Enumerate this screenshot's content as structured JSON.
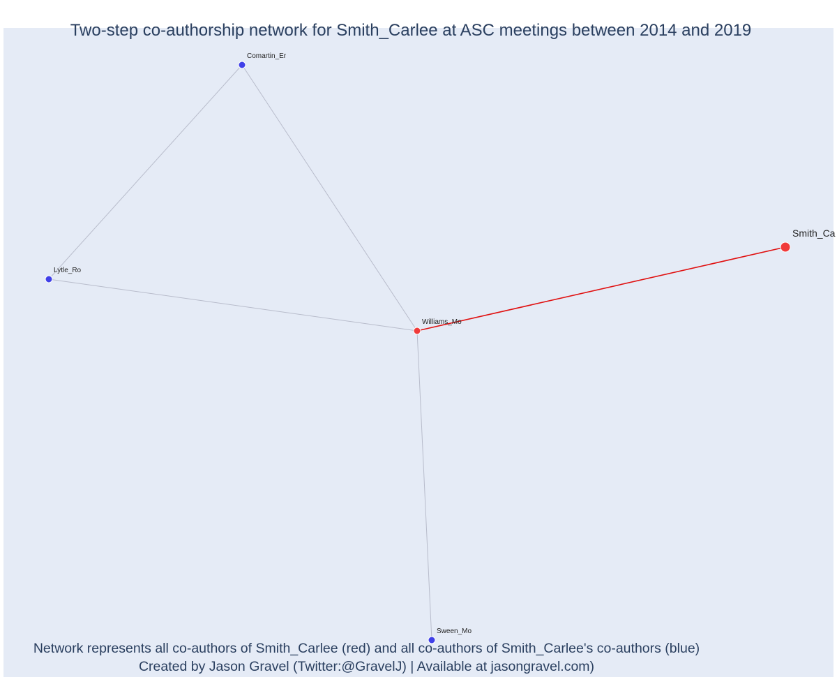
{
  "title": "Two-step co-authorship network for Smith_Carlee at ASC meetings between 2014 and 2019",
  "caption": {
    "line1": "Network represents all co-authors of Smith_Carlee (red) and all co-authors of Smith_Carlee's co-authors (blue)",
    "line2": "Created by Jason Gravel (Twitter:@GravelJ) | Available at jasongravel.com)"
  },
  "colors": {
    "background": "#e5ebf6",
    "focal_node": "#f03a3a",
    "coauthor_node": "#4040e8",
    "focal_edge": "#e01010",
    "other_edge": "#b8bccb",
    "text": "#2a3f5f"
  },
  "network": {
    "nodes": [
      {
        "id": "Smith_Carlee",
        "label": "Smith_Ca",
        "group": "focal"
      },
      {
        "id": "Williams_Mo",
        "label": "Williams_Mo",
        "group": "coauthor"
      },
      {
        "id": "Comartin_Er",
        "label": "Comartin_Er",
        "group": "second-step"
      },
      {
        "id": "Lytle_Ro",
        "label": "Lytle_Ro",
        "group": "second-step"
      },
      {
        "id": "Sween_Mo",
        "label": "Sween_Mo",
        "group": "second-step"
      }
    ],
    "edges": [
      {
        "source": "Williams_Mo",
        "target": "Smith_Carlee",
        "type": "focal"
      },
      {
        "source": "Williams_Mo",
        "target": "Comartin_Er",
        "type": "other"
      },
      {
        "source": "Williams_Mo",
        "target": "Lytle_Ro",
        "type": "other"
      },
      {
        "source": "Williams_Mo",
        "target": "Sween_Mo",
        "type": "other"
      },
      {
        "source": "Comartin_Er",
        "target": "Lytle_Ro",
        "type": "other"
      }
    ]
  }
}
